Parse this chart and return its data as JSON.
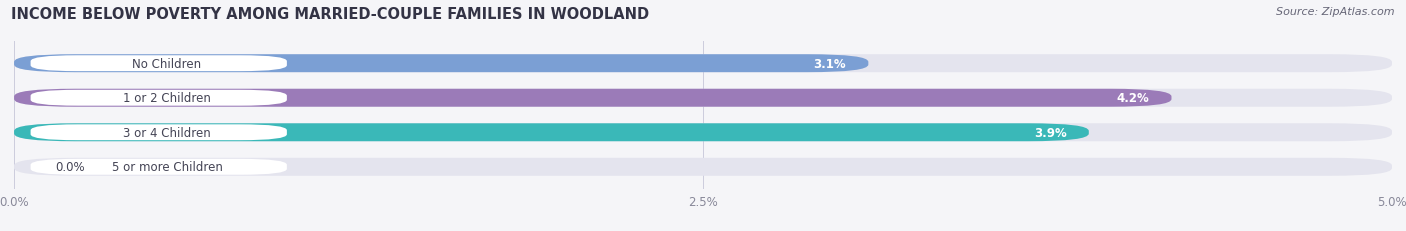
{
  "title": "INCOME BELOW POVERTY AMONG MARRIED-COUPLE FAMILIES IN WOODLAND",
  "source": "Source: ZipAtlas.com",
  "categories": [
    "No Children",
    "1 or 2 Children",
    "3 or 4 Children",
    "5 or more Children"
  ],
  "values": [
    3.1,
    4.2,
    3.9,
    0.0
  ],
  "bar_colors": [
    "#7b9fd4",
    "#9b7bb8",
    "#3ab8b8",
    "#b0b8e0"
  ],
  "bar_bg_color": "#e4e4ee",
  "label_bg_color": "#ffffff",
  "xlim": [
    0,
    5.0
  ],
  "xtick_labels": [
    "0.0%",
    "2.5%",
    "5.0%"
  ],
  "xtick_values": [
    0.0,
    2.5,
    5.0
  ],
  "title_fontsize": 10.5,
  "label_fontsize": 8.5,
  "value_fontsize": 8.5,
  "source_fontsize": 8,
  "bar_height": 0.52,
  "background_color": "#f5f5f8",
  "label_text_color": "#444455",
  "value_text_color": "#ffffff",
  "axis_text_color": "#888899"
}
